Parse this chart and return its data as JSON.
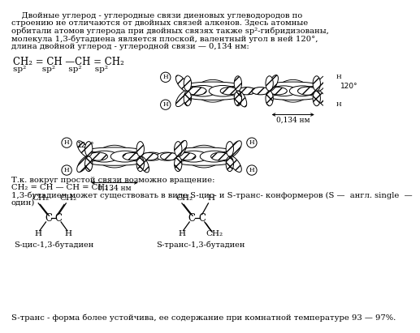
{
  "bg_color": "#ffffff",
  "text_color": "#000000",
  "fs_main": 7.2,
  "fs_formula": 8.5,
  "fs_small": 6.5,
  "lw": 0.8,
  "paragraph1_lines": [
    "    Двойные углерод - углеродные связи диеновых углеводородов по",
    "строению не отличаются от двойных связей алкенов. Здесь атомные",
    "орбитали атомов углерода при двойных связях также sp²-гибридизованы,",
    "молекула 1,3-бутадиена является плоской, валентный угол в ней 120°,",
    "длина двойной углерод - углеродной связи — 0,134 нм:"
  ],
  "bottom_text1": "Т.к. вокруг простой связи возможно вращение:",
  "bottom_text2": "CH₂ = CH — CH = CH₂ ,",
  "bottom_text3": "1,3-бутадиен может существовать в виде S-цис- и S-транс- конформеров (S —  англ. single  —",
  "bottom_text4": "один)",
  "bottom_last": "S-транс - форма более устойчива, ее содержание при комнатной температуре 93 — 97%.",
  "label_cis": "S-цис-1,3-бутадиен",
  "label_trans": "S-транс-1,3-бутадиен"
}
